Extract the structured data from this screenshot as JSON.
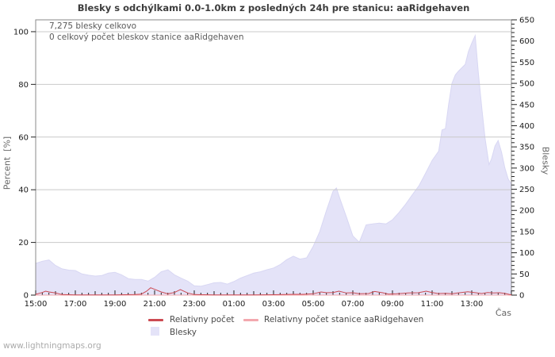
{
  "watermark": "www.lightningmaps.org",
  "chart_data": {
    "type": "area+line",
    "title": "Blesky s odchýlkami 0.0-1.0km z posledných 24h pre stanicu: aaRidgehaven",
    "annotations": {
      "line1": "7,275 blesky celkovo",
      "line2": "0 celkový počet bleskov stanice aaRidgehaven"
    },
    "x_axis_label": "Čas",
    "x_unit": "hours since 15:00, 24h span",
    "x_ticks": [
      "15:00",
      "17:00",
      "19:00",
      "21:00",
      "23:00",
      "01:00",
      "03:00",
      "05:00",
      "07:00",
      "09:00",
      "11:00",
      "13:00"
    ],
    "x_tick_interval_hours": 2,
    "x_minor_tick_minutes": 20,
    "left_axis": {
      "label": "Percent  [%]",
      "min": 0,
      "max": 104.5,
      "ticks": [
        0,
        20,
        40,
        60,
        80,
        100
      ]
    },
    "right_axis": {
      "label": "Blesky",
      "min": 0,
      "max": 650,
      "major_tick_step": 50,
      "minor_tick_step": 10
    },
    "grid": "horizontal-only",
    "legend": [
      {
        "label": "Relativny počet",
        "type": "line",
        "color": "#cc4a52"
      },
      {
        "label": "Relativny počet stanice aaRidgehaven",
        "type": "line",
        "color": "#f3a8ae"
      },
      {
        "label": "Blesky",
        "type": "area",
        "color": "#e4e3f8"
      }
    ],
    "colors": {
      "grid": "#c9c9c9",
      "frame": "#888888",
      "tick": "#222222",
      "area_edge": "#d8d7f3"
    },
    "series": [
      {
        "name": "Blesky",
        "axis": "right",
        "style": "area",
        "color": "#e4e3f8",
        "x": [
          0,
          0.33,
          0.67,
          1,
          1.33,
          1.67,
          2,
          2.33,
          2.67,
          3,
          3.33,
          3.67,
          4,
          4.33,
          4.67,
          5,
          5.33,
          5.67,
          6,
          6.33,
          6.67,
          7,
          7.33,
          7.67,
          8,
          8.33,
          8.67,
          9,
          9.33,
          9.67,
          10,
          10.33,
          10.67,
          11,
          11.33,
          11.67,
          12,
          12.33,
          12.67,
          13,
          13.33,
          13.67,
          14,
          14.33,
          14.67,
          15,
          15.17,
          15.33,
          15.67,
          16,
          16.33,
          16.67,
          17,
          17.33,
          17.67,
          18,
          18.33,
          18.67,
          19,
          19.33,
          19.67,
          20,
          20.33,
          20.5,
          20.67,
          20.83,
          21,
          21.17,
          21.33,
          21.67,
          21.83,
          22,
          22.17,
          22.33,
          22.5,
          22.67,
          22.87,
          23,
          23.17,
          23.33,
          23.5,
          23.67,
          23.83,
          24
        ],
        "values": [
          75,
          80,
          83,
          70,
          62,
          59,
          58,
          50,
          47,
          45,
          46,
          52,
          54,
          48,
          39,
          37,
          37,
          33,
          42,
          55,
          60,
          48,
          40,
          33,
          22,
          21,
          25,
          29,
          30,
          26,
          32,
          40,
          46,
          52,
          55,
          60,
          64,
          72,
          84,
          92,
          85,
          88,
          115,
          150,
          200,
          245,
          253,
          230,
          185,
          140,
          125,
          166,
          168,
          170,
          168,
          178,
          195,
          215,
          237,
          258,
          288,
          318,
          340,
          390,
          393,
          450,
          500,
          520,
          529,
          545,
          575,
          595,
          613,
          525,
          445,
          370,
          308,
          322,
          352,
          365,
          338,
          300,
          275,
          262
        ]
      },
      {
        "name": "Relativny počet",
        "axis": "left",
        "style": "line",
        "color": "#cc4a52",
        "x": [
          0,
          0.33,
          0.5,
          0.67,
          1,
          1.33,
          2,
          3,
          4,
          5,
          5.33,
          5.6,
          5.8,
          6,
          6.33,
          6.67,
          7,
          7.3,
          7.67,
          8,
          8.5,
          9,
          10,
          11,
          12,
          12.5,
          13,
          13.5,
          14,
          14.4,
          14.67,
          15,
          15.3,
          15.67,
          16,
          16.33,
          16.8,
          17.1,
          17.5,
          17.8,
          18.2,
          18.8,
          19.3,
          19.7,
          20,
          20.3,
          20.7,
          21,
          21.3,
          21.8,
          22.2,
          22.5,
          22.8,
          23.1,
          23.4,
          23.7,
          24
        ],
        "values": [
          0.3,
          1.0,
          1.5,
          1.2,
          0.8,
          0.2,
          0.1,
          0.1,
          0.1,
          0.2,
          0.4,
          1.5,
          2.8,
          2.2,
          1.2,
          0.5,
          1.0,
          2.1,
          0.8,
          0.2,
          0.15,
          0.1,
          0.1,
          0.1,
          0.15,
          0.2,
          0.3,
          0.3,
          0.5,
          1.2,
          0.9,
          1.0,
          1.5,
          0.8,
          0.9,
          0.5,
          0.6,
          1.4,
          0.9,
          0.4,
          0.5,
          0.8,
          0.9,
          1.5,
          1.0,
          0.6,
          0.7,
          0.5,
          0.8,
          1.3,
          0.9,
          0.6,
          1.0,
          0.8,
          0.9,
          0.6,
          0.1
        ]
      },
      {
        "name": "Relativny počet stanice aaRidgehaven",
        "axis": "left",
        "style": "line",
        "color": "#f3a8ae",
        "x": [
          0,
          24
        ],
        "values": [
          0,
          0
        ]
      }
    ]
  }
}
